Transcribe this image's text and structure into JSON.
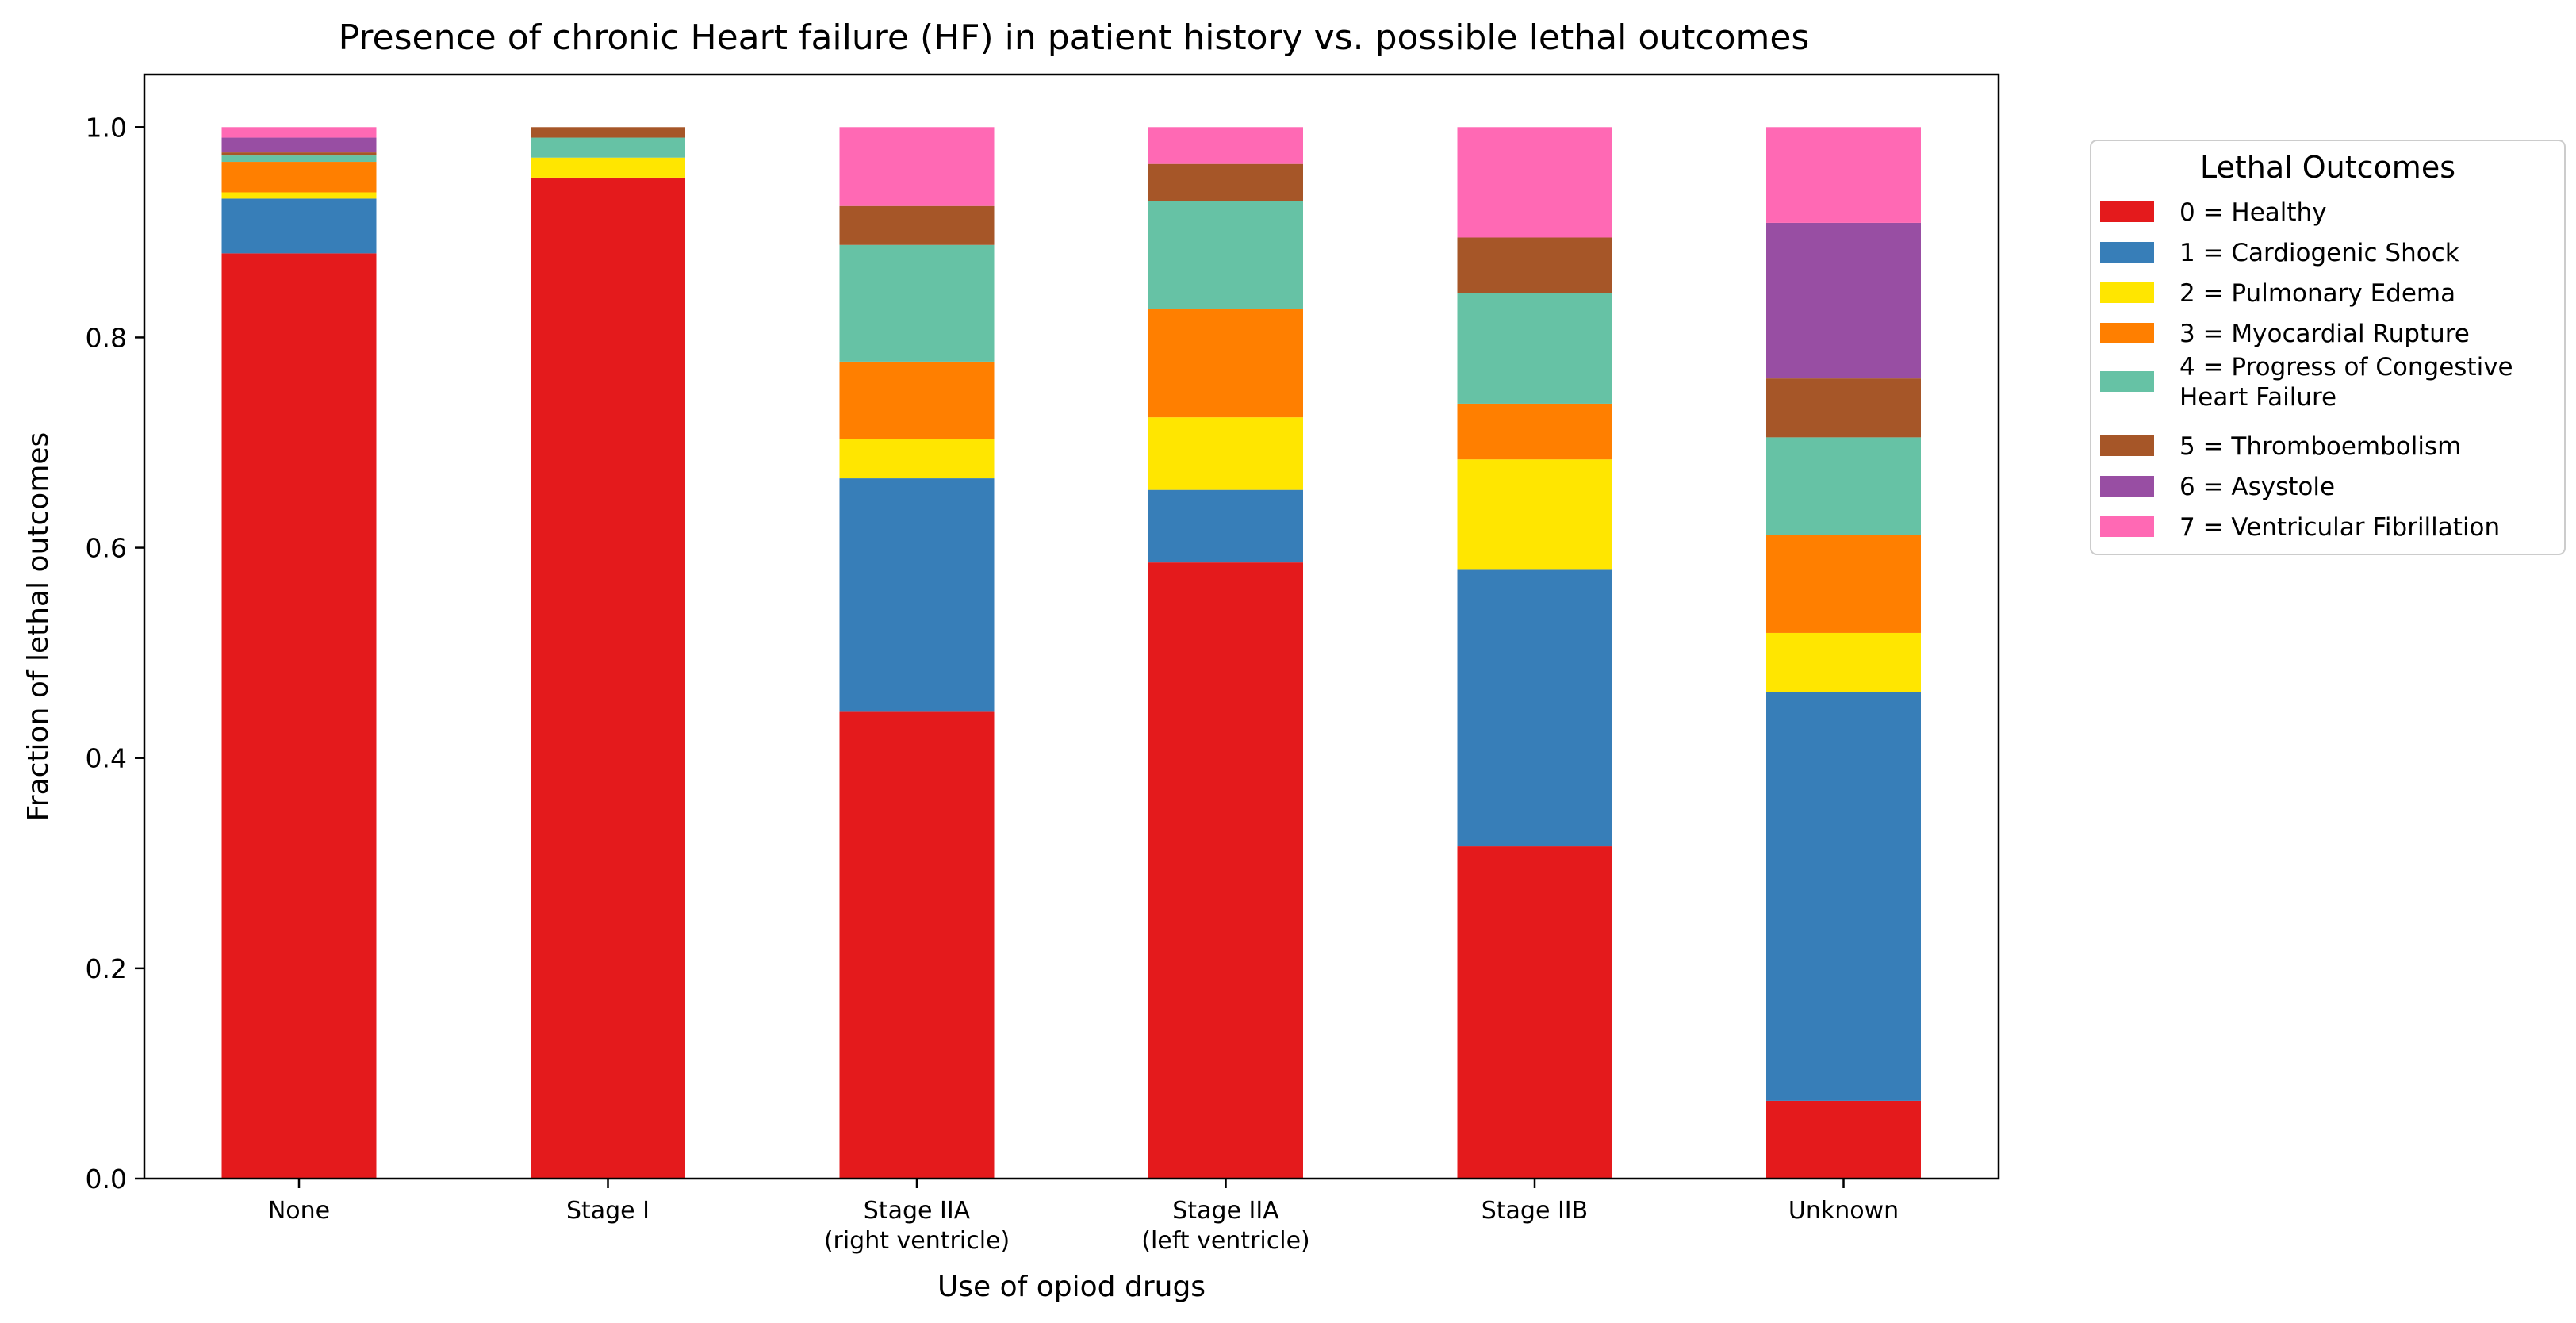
{
  "chart_data": {
    "type": "bar",
    "stacked": true,
    "title": "Presence of chronic Heart failure (HF) in patient history vs. possible lethal outcomes",
    "xlabel": "Use of opiod drugs",
    "ylabel": "Fraction of lethal outcomes",
    "ylim": [
      0,
      1.05
    ],
    "yticks": [
      "0.0",
      "0.2",
      "0.4",
      "0.6",
      "0.8",
      "1.0"
    ],
    "ytick_values": [
      0,
      0.2,
      0.4,
      0.6,
      0.8,
      1.0
    ],
    "categories": [
      [
        "None"
      ],
      [
        "Stage I"
      ],
      [
        "Stage IIA",
        "(right ventricle)"
      ],
      [
        "Stage IIA",
        "(left ventricle)"
      ],
      [
        "Stage IIB"
      ],
      [
        "Unknown"
      ]
    ],
    "legend": {
      "title": "Lethal Outcomes",
      "position": "outside-right"
    },
    "series": [
      {
        "name": [
          "0 = Healthy"
        ],
        "color": "#e41a1c",
        "values": [
          0.88,
          0.952,
          0.444,
          0.586,
          0.316,
          0.074
        ]
      },
      {
        "name": [
          "1 = Cardiogenic Shock"
        ],
        "color": "#377eb8",
        "values": [
          0.052,
          0.0,
          0.222,
          0.069,
          0.263,
          0.389
        ]
      },
      {
        "name": [
          "2 = Pulmonary Edema"
        ],
        "color": "#ffe600",
        "values": [
          0.006,
          0.019,
          0.037,
          0.069,
          0.105,
          0.056
        ]
      },
      {
        "name": [
          "3 = Myocardial Rupture"
        ],
        "color": "#ff7f00",
        "values": [
          0.029,
          0.0,
          0.074,
          0.103,
          0.053,
          0.093
        ]
      },
      {
        "name": [
          "4 = Progress of Congestive",
          "Heart Failure"
        ],
        "color": "#66c2a5",
        "values": [
          0.006,
          0.019,
          0.111,
          0.103,
          0.105,
          0.093
        ]
      },
      {
        "name": [
          "5 = Thromboembolism"
        ],
        "color": "#a65628",
        "values": [
          0.003,
          0.01,
          0.037,
          0.035,
          0.053,
          0.056
        ]
      },
      {
        "name": [
          "6 = Asystole"
        ],
        "color": "#984ea3",
        "values": [
          0.014,
          0.0,
          0.0,
          0.0,
          0.0,
          0.148
        ]
      },
      {
        "name": [
          "7 = Ventricular Fibrillation"
        ],
        "color": "#ff69b4",
        "values": [
          0.01,
          0.0,
          0.075,
          0.035,
          0.105,
          0.091
        ]
      }
    ]
  }
}
